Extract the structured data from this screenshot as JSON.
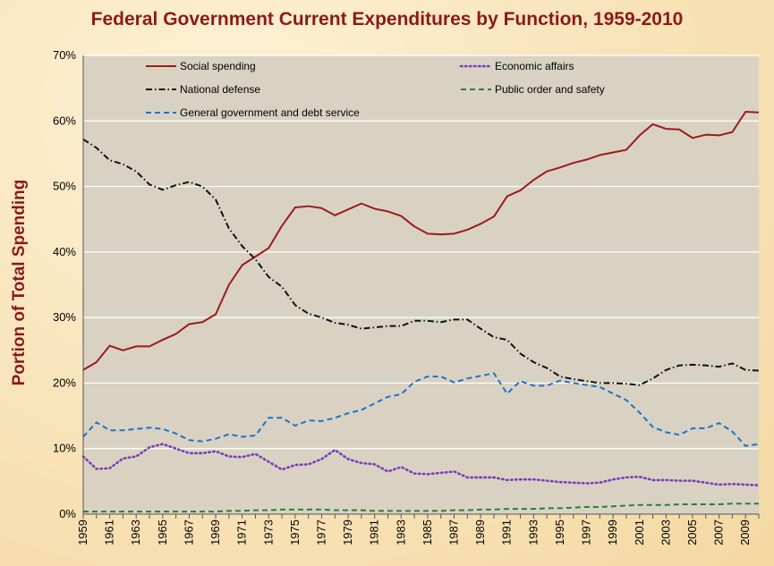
{
  "chart_data": {
    "type": "line",
    "title": "Federal Government Current Expenditures by Function, 1959-2010",
    "xlabel": "",
    "ylabel": "Portion of Total Spending",
    "ylim": [
      0,
      70
    ],
    "y_ticks": [
      "0%",
      "10%",
      "20%",
      "30%",
      "40%",
      "50%",
      "60%",
      "70%"
    ],
    "x_tick_labels": [
      "1959",
      "1961",
      "1963",
      "1965",
      "1967",
      "1969",
      "1971",
      "1973",
      "1975",
      "1977",
      "1979",
      "1981",
      "1983",
      "1985",
      "1987",
      "1989",
      "1991",
      "1993",
      "1995",
      "1997",
      "1999",
      "2001",
      "2003",
      "2005",
      "2007",
      "2009"
    ],
    "x": [
      1959,
      1960,
      1961,
      1962,
      1963,
      1964,
      1965,
      1966,
      1967,
      1968,
      1969,
      1970,
      1971,
      1972,
      1973,
      1974,
      1975,
      1976,
      1977,
      1978,
      1979,
      1980,
      1981,
      1982,
      1983,
      1984,
      1985,
      1986,
      1987,
      1988,
      1989,
      1990,
      1991,
      1992,
      1993,
      1994,
      1995,
      1996,
      1997,
      1998,
      1999,
      2000,
      2001,
      2002,
      2003,
      2004,
      2005,
      2006,
      2007,
      2008,
      2009,
      2010
    ],
    "series": [
      {
        "name": "Social spending",
        "color": "#9b1b1b",
        "dash": "solid",
        "values": [
          22.0,
          23.2,
          25.7,
          25.0,
          25.6,
          25.6,
          26.6,
          27.5,
          29.0,
          29.3,
          30.5,
          35.0,
          38.0,
          39.3,
          40.6,
          44.0,
          46.8,
          47.0,
          46.7,
          45.6,
          46.5,
          47.4,
          46.6,
          46.2,
          45.5,
          43.9,
          42.8,
          42.7,
          42.8,
          43.4,
          44.3,
          45.4,
          48.5,
          49.4,
          51.0,
          52.3,
          52.9,
          53.6,
          54.1,
          54.8,
          55.2,
          55.6,
          57.8,
          59.5,
          58.8,
          58.7,
          57.4,
          57.9,
          57.8,
          58.3,
          61.4,
          61.3
        ]
      },
      {
        "name": "Economic affairs",
        "color": "#7a3fb8",
        "dash": "dot",
        "values": [
          8.8,
          6.9,
          7.0,
          8.5,
          8.8,
          10.2,
          10.7,
          10.0,
          9.3,
          9.3,
          9.6,
          8.8,
          8.7,
          9.2,
          8.0,
          6.8,
          7.5,
          7.6,
          8.4,
          9.8,
          8.4,
          7.8,
          7.6,
          6.5,
          7.2,
          6.2,
          6.1,
          6.3,
          6.5,
          5.6,
          5.6,
          5.6,
          5.2,
          5.3,
          5.3,
          5.1,
          4.9,
          4.8,
          4.7,
          4.8,
          5.3,
          5.6,
          5.7,
          5.2,
          5.2,
          5.1,
          5.1,
          4.8,
          4.5,
          4.6,
          4.5,
          4.4
        ]
      },
      {
        "name": "National defense",
        "color": "#111111",
        "dash": "dashdot",
        "values": [
          57.2,
          55.9,
          54.0,
          53.4,
          52.3,
          50.3,
          49.5,
          50.2,
          50.7,
          50.0,
          48.0,
          43.6,
          40.9,
          38.9,
          36.2,
          34.7,
          31.9,
          30.6,
          30.0,
          29.2,
          28.9,
          28.3,
          28.5,
          28.7,
          28.7,
          29.5,
          29.5,
          29.3,
          29.7,
          29.7,
          28.3,
          27.0,
          26.6,
          24.5,
          23.2,
          22.3,
          21.0,
          20.6,
          20.3,
          20.0,
          20.0,
          19.9,
          19.7,
          20.7,
          22.0,
          22.7,
          22.8,
          22.7,
          22.5,
          23.0,
          22.0,
          21.9
        ]
      },
      {
        "name": "Public order and safety",
        "color": "#2e7d32",
        "dash": "dash",
        "values": [
          0.4,
          0.4,
          0.4,
          0.4,
          0.4,
          0.4,
          0.4,
          0.4,
          0.4,
          0.4,
          0.4,
          0.5,
          0.5,
          0.6,
          0.6,
          0.7,
          0.7,
          0.7,
          0.7,
          0.6,
          0.6,
          0.6,
          0.5,
          0.5,
          0.5,
          0.5,
          0.5,
          0.5,
          0.6,
          0.6,
          0.7,
          0.7,
          0.8,
          0.8,
          0.8,
          0.9,
          0.9,
          1.0,
          1.1,
          1.1,
          1.2,
          1.3,
          1.4,
          1.4,
          1.4,
          1.5,
          1.5,
          1.5,
          1.5,
          1.6,
          1.6,
          1.6
        ]
      },
      {
        "name": "General government and debt service",
        "color": "#1e73c8",
        "dash": "dash",
        "values": [
          11.8,
          14.0,
          12.8,
          12.8,
          13.0,
          13.2,
          13.0,
          12.3,
          11.3,
          11.1,
          11.5,
          12.2,
          11.8,
          12.0,
          14.7,
          14.7,
          13.5,
          14.3,
          14.2,
          14.7,
          15.4,
          15.9,
          16.9,
          17.9,
          18.3,
          20.2,
          21.0,
          21.0,
          20.1,
          20.7,
          21.1,
          21.5,
          18.4,
          20.3,
          19.6,
          19.6,
          20.4,
          20.0,
          19.7,
          19.4,
          18.4,
          17.4,
          15.5,
          13.3,
          12.5,
          12.1,
          13.1,
          13.1,
          13.9,
          12.6,
          10.4,
          10.7
        ]
      }
    ],
    "legend": {
      "placement": "top, in two columns inside plot",
      "entries": [
        "Social spending",
        "Economic affairs",
        "National defense",
        "Public order and safety",
        "General government and debt service"
      ]
    },
    "colors": {
      "plot_background": "#d9d2c3",
      "gridline": "#ffffff",
      "title": "#8b1a1a"
    },
    "grid": true
  }
}
